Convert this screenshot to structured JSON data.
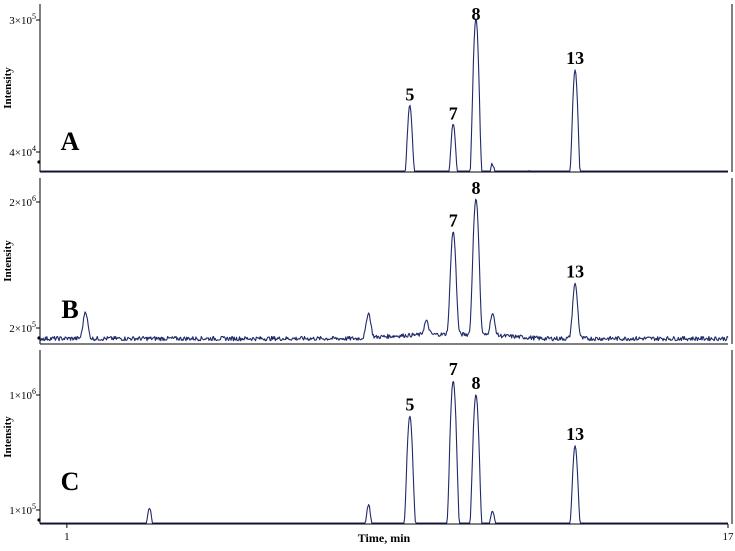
{
  "chart_data": [
    {
      "type": "line",
      "panel_label": "A",
      "ylabel": "Intensity",
      "y_ticks": [
        {
          "value": 300000,
          "base": "3×10",
          "exp": "5"
        },
        {
          "value": 40000,
          "base": "4×10",
          "exp": "4"
        }
      ],
      "ylim": [
        20000,
        310000
      ],
      "series": [
        {
          "peaks": [
            {
              "t": 9.3,
              "y": 80000,
              "label": "5"
            },
            {
              "t": 10.35,
              "y": 60000,
              "label": "7"
            },
            {
              "t": 10.9,
              "y": 305000,
              "label": "8"
            },
            {
              "t": 13.3,
              "y": 140000,
              "label": "13"
            },
            {
              "t": 11.3,
              "y": 32000,
              "label": ""
            },
            {
              "t": 1.3,
              "y": 27000,
              "label": ""
            },
            {
              "t": 12.2,
              "y": 30000,
              "label": ""
            }
          ],
          "baseline": 23000
        }
      ]
    },
    {
      "type": "line",
      "panel_label": "B",
      "ylabel": "Intensity",
      "y_ticks": [
        {
          "value": 2000000,
          "base": "2×10",
          "exp": "6"
        },
        {
          "value": 200000,
          "base": "2×10",
          "exp": "5"
        }
      ],
      "ylim": [
        150000,
        2150000
      ],
      "series": [
        {
          "peaks": [
            {
              "t": 10.35,
              "y": 1150000,
              "label": "7"
            },
            {
              "t": 10.9,
              "y": 2100000,
              "label": "8"
            },
            {
              "t": 13.3,
              "y": 450000,
              "label": "13"
            },
            {
              "t": 1.45,
              "y": 270000,
              "label": ""
            },
            {
              "t": 8.3,
              "y": 260000,
              "label": ""
            },
            {
              "t": 11.3,
              "y": 250000,
              "label": ""
            },
            {
              "t": 9.7,
              "y": 215000,
              "label": ""
            }
          ],
          "baseline": 165000
        }
      ]
    },
    {
      "type": "line",
      "panel_label": "C",
      "ylabel": "Intensity",
      "x_ticks": [
        {
          "value": 1,
          "label": "1"
        },
        {
          "value": 17,
          "label": "17"
        }
      ],
      "xlabel": "Time, min",
      "xlim": [
        0.35,
        17
      ],
      "y_ticks": [
        {
          "value": 1000000,
          "base": "1×10",
          "exp": "6"
        },
        {
          "value": 100000,
          "base": "1×10",
          "exp": "5"
        }
      ],
      "ylim": [
        40000,
        1350000
      ],
      "series": [
        {
          "peaks": [
            {
              "t": 9.3,
              "y": 650000,
              "label": "5"
            },
            {
              "t": 10.35,
              "y": 1320000,
              "label": "7"
            },
            {
              "t": 10.9,
              "y": 1000000,
              "label": "8"
            },
            {
              "t": 13.3,
              "y": 360000,
              "label": "13"
            },
            {
              "t": 3.0,
              "y": 105000,
              "label": ""
            },
            {
              "t": 8.3,
              "y": 110000,
              "label": ""
            },
            {
              "t": 11.3,
              "y": 95000,
              "label": ""
            }
          ],
          "baseline": 58000
        }
      ]
    }
  ]
}
